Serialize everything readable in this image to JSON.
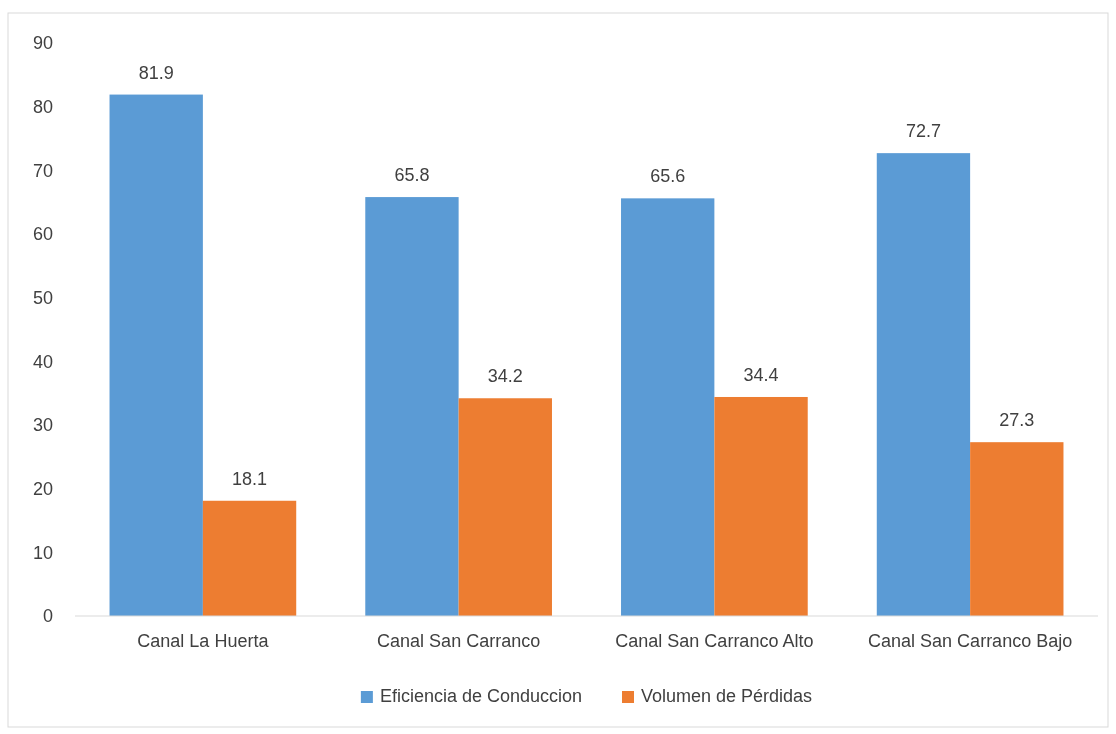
{
  "chart_data": {
    "type": "bar",
    "categories": [
      "Canal La Huerta",
      "Canal San Carranco",
      "Canal San Carranco Alto",
      "Canal San Carranco Bajo"
    ],
    "series": [
      {
        "name": "Eficiencia de Conduccion",
        "color": "#5b9bd5",
        "values": [
          81.9,
          65.8,
          65.6,
          72.7
        ]
      },
      {
        "name": "Volumen de Pérdidas",
        "color": "#ed7d31",
        "values": [
          18.1,
          34.2,
          34.4,
          27.3
        ]
      }
    ],
    "ylim": [
      0,
      90
    ],
    "yticks": [
      0,
      10,
      20,
      30,
      40,
      50,
      60,
      70,
      80,
      90
    ],
    "grid": false,
    "legend": "bottom",
    "data_labels": true
  }
}
